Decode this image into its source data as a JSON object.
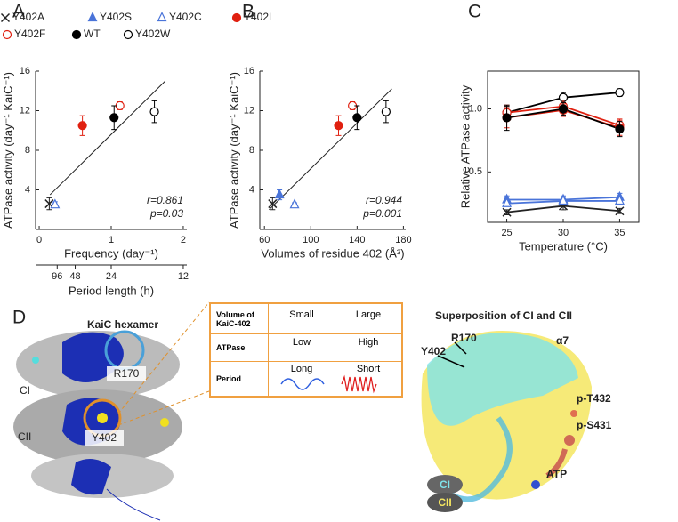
{
  "chart_data": [
    {
      "type": "scatter",
      "panel_label": "A",
      "xlabel": "Frequency (day⁻¹)",
      "ylabel": "ATPase activity (day⁻¹ KaiC⁻¹)",
      "xlim": [
        -0.05,
        2.05
      ],
      "xticks": [
        0,
        1,
        2
      ],
      "ylim": [
        0,
        16
      ],
      "yticks": [
        4,
        8,
        12,
        16
      ],
      "x2label": "Period length (h)",
      "x2ticks": [
        {
          "value": 0.25,
          "label": "96"
        },
        {
          "value": 0.5,
          "label": "48"
        },
        {
          "value": 1,
          "label": "24"
        },
        {
          "value": 2,
          "label": "12"
        }
      ],
      "series": [
        {
          "marker": "x",
          "color": "#222222",
          "x": [
            0.14
          ],
          "values": [
            2.6
          ],
          "errors": [
            0.6
          ]
        },
        {
          "marker": "triangle-open",
          "color": "#4a74d9",
          "x": [
            0.22
          ],
          "values": [
            2.5
          ],
          "errors": [
            0.3
          ]
        },
        {
          "marker": "circle",
          "color": "#e02010",
          "x": [
            0.6
          ],
          "values": [
            10.5
          ],
          "errors": [
            1.0
          ]
        },
        {
          "marker": "circle-open",
          "color": "#e02010",
          "x": [
            1.12
          ],
          "values": [
            12.5
          ],
          "errors": [
            0.4
          ]
        },
        {
          "marker": "circle",
          "color": "#000000",
          "x": [
            1.04
          ],
          "values": [
            11.3
          ],
          "errors": [
            1.2
          ]
        },
        {
          "marker": "circle-open",
          "color": "#000000",
          "x": [
            1.6
          ],
          "values": [
            11.9
          ],
          "errors": [
            1.1
          ]
        }
      ],
      "fit": {
        "x": [
          0.15,
          1.75
        ],
        "values": [
          3.5,
          15
        ]
      },
      "annotations": [
        "r=0.861",
        "p=0.03"
      ]
    },
    {
      "type": "scatter",
      "panel_label": "B",
      "xlabel": "Volumes of residue 402 (Å³)",
      "ylabel": "ATPase activity (day⁻¹ KaiC⁻¹)",
      "xlim": [
        56,
        182
      ],
      "xticks": [
        60,
        100,
        140,
        180
      ],
      "ylim": [
        0,
        16
      ],
      "yticks": [
        4,
        8,
        12,
        16
      ],
      "series": [
        {
          "name": "Y402A",
          "marker": "x",
          "color": "#222222",
          "x": [
            67
          ],
          "values": [
            2.6
          ],
          "errors": [
            0.6
          ]
        },
        {
          "name": "Y402S",
          "marker": "triangle",
          "color": "#4a74d9",
          "x": [
            73
          ],
          "values": [
            3.5
          ],
          "errors": [
            0.5
          ]
        },
        {
          "name": "Y402C",
          "marker": "triangle-open",
          "color": "#4a74d9",
          "x": [
            86
          ],
          "values": [
            2.5
          ],
          "errors": [
            0.2
          ]
        },
        {
          "name": "Y402L",
          "marker": "circle",
          "color": "#e02010",
          "x": [
            124
          ],
          "values": [
            10.5
          ],
          "errors": [
            1.0
          ]
        },
        {
          "name": "Y402F",
          "marker": "circle-open",
          "color": "#e02010",
          "x": [
            136
          ],
          "values": [
            12.5
          ],
          "errors": [
            0.4
          ]
        },
        {
          "name": "WT",
          "marker": "circle",
          "color": "#000000",
          "x": [
            140
          ],
          "values": [
            11.3
          ],
          "errors": [
            1.2
          ]
        },
        {
          "name": "Y402W",
          "marker": "circle-open",
          "color": "#000000",
          "x": [
            165
          ],
          "values": [
            11.9
          ],
          "errors": [
            1.1
          ]
        }
      ],
      "fit": {
        "x": [
          64,
          170
        ],
        "values": [
          2.0,
          14.2
        ]
      },
      "annotations": [
        "r=0.944",
        "p=0.001"
      ]
    },
    {
      "type": "line",
      "panel_label": "C",
      "xlabel": "Temperature (°C)",
      "ylabel": "Relative ATPase activity",
      "x": [
        25,
        30,
        35
      ],
      "xlim": [
        23.3,
        36.7
      ],
      "xticks": [
        25,
        30,
        35
      ],
      "ylim": [
        0.1,
        1.3
      ],
      "yticks": [
        0.5,
        {
          "value": 1,
          "label": "1.0"
        }
      ],
      "series": [
        {
          "marker": "x",
          "color": "#222222",
          "values": [
            0.18,
            0.23,
            0.19
          ],
          "errors": [
            0.02,
            0.03,
            0.02
          ]
        },
        {
          "marker": "triangle",
          "color": "#4a74d9",
          "values": [
            0.28,
            0.28,
            0.3
          ],
          "errors": [
            0.03,
            0.03,
            0.03
          ]
        },
        {
          "marker": "triangle-open",
          "color": "#4a74d9",
          "values": [
            0.25,
            0.27,
            0.27
          ],
          "errors": [
            0.02,
            0.02,
            0.02
          ]
        },
        {
          "marker": "circle-open",
          "color": "#000000",
          "values": [
            0.97,
            1.09,
            1.13
          ],
          "errors": [
            0.05,
            0.04,
            0.03
          ]
        },
        {
          "marker": "circle-open",
          "color": "#e02010",
          "values": [
            0.97,
            1.02,
            0.87
          ],
          "errors": [
            0.06,
            0.05,
            0.05
          ]
        },
        {
          "marker": "circle",
          "color": "#e02010",
          "values": [
            0.93,
            0.99,
            0.85
          ],
          "errors": [
            0.08,
            0.05,
            0.06
          ]
        },
        {
          "marker": "circle",
          "color": "#000000",
          "values": [
            0.93,
            1.0,
            0.84
          ],
          "errors": [
            0.1,
            0.05,
            0.06
          ]
        }
      ]
    }
  ],
  "panel_d": {
    "label": "D",
    "hexamer": {
      "title": "KaiC hexamer",
      "domains": [
        "CI",
        "CII"
      ],
      "residues": [
        "R170",
        "Y402"
      ]
    },
    "table": {
      "rows": [
        [
          "Volume of KaiC-402",
          "Small",
          "Large"
        ],
        [
          "ATPase",
          "Low",
          "High"
        ],
        [
          "Period",
          "Long",
          "Short"
        ]
      ]
    },
    "superposition": {
      "title": "Superposition of CI and CII",
      "labels": [
        "R170",
        "Y402",
        "α7",
        "p-T432",
        "p-S431",
        "ATP"
      ],
      "legend": [
        "CI",
        "CII"
      ]
    }
  }
}
